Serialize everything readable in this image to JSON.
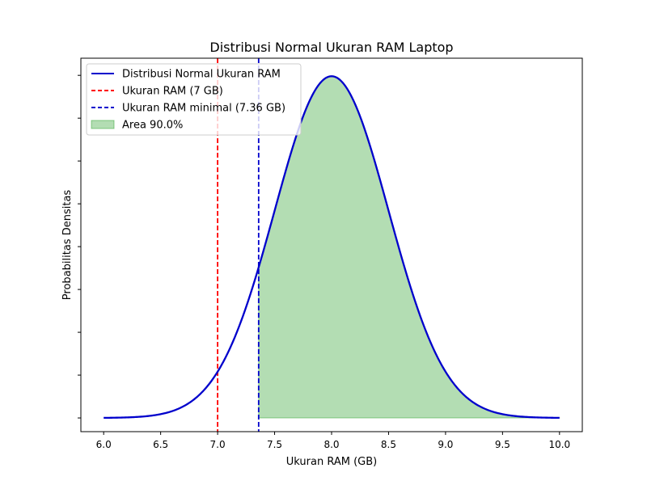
{
  "chart_data": {
    "type": "line",
    "title": "Distribusi Normal Ukuran RAM Laptop",
    "xlabel": "Ukuran RAM (GB)",
    "ylabel": "Probabilitas Densitas",
    "xlim": [
      5.8,
      10.2
    ],
    "ylim": [
      -0.032,
      0.84
    ],
    "x_ticks": [
      6.0,
      6.5,
      7.0,
      7.5,
      8.0,
      8.5,
      9.0,
      9.5,
      10.0
    ],
    "x_tick_labels": [
      "6.0",
      "6.5",
      "7.0",
      "7.5",
      "8.0",
      "8.5",
      "9.0",
      "9.5",
      "10.0"
    ],
    "y_ticks": [
      0.0,
      0.1,
      0.2,
      0.3,
      0.4,
      0.5,
      0.6,
      0.7,
      0.8
    ],
    "y_tick_labels_visible": false,
    "grid": false,
    "legend_position": "top-left",
    "series": [
      {
        "name": "Distribusi Normal Ukuran RAM",
        "kind": "normal-pdf",
        "mean": 8.0,
        "std": 0.5,
        "x_range": [
          6.0,
          10.0
        ],
        "color": "#0000cc"
      }
    ],
    "vlines": [
      {
        "name": "Ukuran RAM (7 GB)",
        "x": 7.0,
        "color": "#ff0000",
        "style": "dashed"
      },
      {
        "name": "Ukuran RAM minimal (7.36 GB)",
        "x": 7.36,
        "color": "#0000cc",
        "style": "dashed"
      }
    ],
    "fill": {
      "name": "Area 90.0%",
      "x_from": 7.36,
      "x_to": 10.0,
      "color": "#2ca02c",
      "opacity": 0.36
    }
  }
}
